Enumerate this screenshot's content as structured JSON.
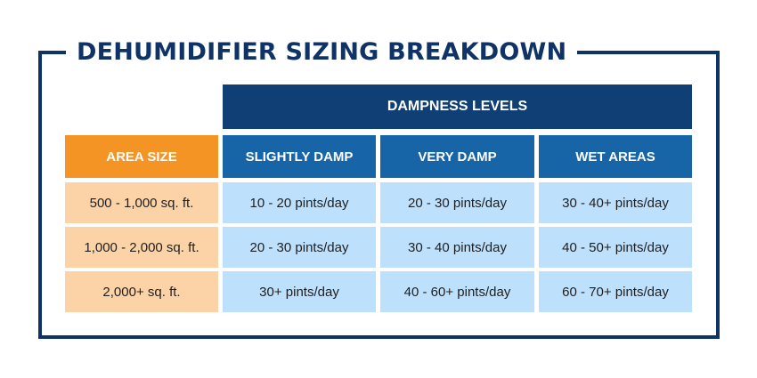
{
  "title": "DEHUMIDIFIER SIZING BREAKDOWN",
  "group_header": "DAMPNESS LEVELS",
  "columns": {
    "area": "AREA SIZE",
    "slightly": "SLIGHTLY DAMP",
    "very": "VERY DAMP",
    "wet": "WET AREAS"
  },
  "rows": [
    {
      "area": "500 - 1,000 sq. ft.",
      "slightly": "10 - 20 pints/day",
      "very": "20 - 30 pints/day",
      "wet": "30 - 40+ pints/day"
    },
    {
      "area": "1,000 - 2,000 sq. ft.",
      "slightly": "20 - 30 pints/day",
      "very": "30 - 40 pints/day",
      "wet": "40 - 50+ pints/day"
    },
    {
      "area": "2,000+ sq. ft.",
      "slightly": "30+ pints/day",
      "very": "40 - 60+ pints/day",
      "wet": "60 - 70+ pints/day"
    }
  ],
  "colors": {
    "frame": "#0f3367",
    "group_header_bg": "#0f3f74",
    "column_header_bg": "#1764a6",
    "area_header_bg": "#f49424",
    "area_cell_bg": "#fcd3a6",
    "value_cell_bg": "#bde0fc"
  }
}
